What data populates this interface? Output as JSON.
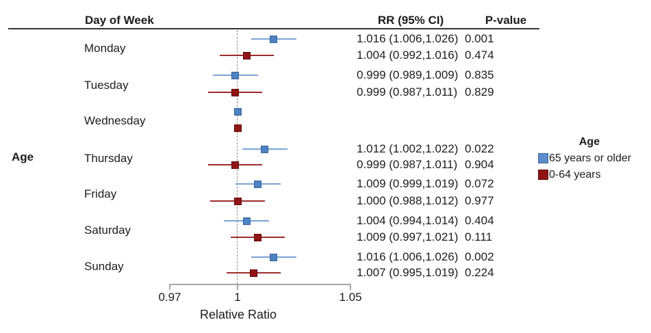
{
  "header": {
    "day_of_week": "Day of Week",
    "rr_ci": "RR (95% CI)",
    "p_value": "P-value"
  },
  "row_group_label": "Age",
  "axis": {
    "label": "Relative Ratio",
    "ticks": [
      {
        "value": 0.97,
        "label": "0.97"
      },
      {
        "value": 1,
        "label": "1"
      },
      {
        "value": 1.05,
        "label": "1.05"
      }
    ],
    "reference_value": 1
  },
  "legend": {
    "title": "Age",
    "items": [
      {
        "label": "65 years or older",
        "color": "#5d8dc8",
        "border": "#3a67a2"
      },
      {
        "label": "0-64 years",
        "color": "#911414",
        "border": "#5c0909"
      }
    ]
  },
  "colors": {
    "blue_line": "#7aa2d4",
    "blue_fill": "#4e82c2",
    "blue_border": "#36639e",
    "red_line": "#9d2b2b",
    "red_fill": "#911414",
    "red_border": "#5c0909",
    "text": "#1c1c1c",
    "rule": "#333333",
    "axis": "#a6a6a6",
    "reference": "#8a8a8a"
  },
  "chart_data": {
    "type": "scatter",
    "variant": "forest-plot",
    "title": "",
    "xlabel": "Relative Ratio",
    "ylabel": "Day of Week",
    "xlim": [
      0.955,
      1.06
    ],
    "x_ticks": [
      0.97,
      1,
      1.05
    ],
    "reference_line": 1,
    "grid": false,
    "legend_position": "right",
    "groups": [
      {
        "name": "65 years or older",
        "color": "#5d8dc8"
      },
      {
        "name": "0-64 years",
        "color": "#911414"
      }
    ],
    "rows": [
      {
        "day": "Monday",
        "group": "65 years or older",
        "rr": 1.016,
        "ci_low": 1.006,
        "ci_high": 1.026,
        "rr_text": "1.016 (1.006,1.026)",
        "p_text": "0.001"
      },
      {
        "day": "Monday",
        "group": "0-64 years",
        "rr": 1.004,
        "ci_low": 0.992,
        "ci_high": 1.016,
        "rr_text": "1.004 (0.992,1.016)",
        "p_text": "0.474"
      },
      {
        "day": "Tuesday",
        "group": "65 years or older",
        "rr": 0.999,
        "ci_low": 0.989,
        "ci_high": 1.009,
        "rr_text": "0.999 (0.989,1.009)",
        "p_text": "0.835"
      },
      {
        "day": "Tuesday",
        "group": "0-64 years",
        "rr": 0.999,
        "ci_low": 0.987,
        "ci_high": 1.011,
        "rr_text": "0.999 (0.987,1.011)",
        "p_text": "0.829"
      },
      {
        "day": "Wednesday",
        "group": "65 years or older",
        "rr": 1.0,
        "ci_low": null,
        "ci_high": null,
        "rr_text": "",
        "p_text": ""
      },
      {
        "day": "Wednesday",
        "group": "0-64 years",
        "rr": 1.0,
        "ci_low": null,
        "ci_high": null,
        "rr_text": "",
        "p_text": ""
      },
      {
        "day": "Thursday",
        "group": "65 years or older",
        "rr": 1.012,
        "ci_low": 1.002,
        "ci_high": 1.022,
        "rr_text": "1.012 (1.002,1.022)",
        "p_text": "0.022"
      },
      {
        "day": "Thursday",
        "group": "0-64 years",
        "rr": 0.999,
        "ci_low": 0.987,
        "ci_high": 1.011,
        "rr_text": "0.999 (0.987,1.011)",
        "p_text": "0.904"
      },
      {
        "day": "Friday",
        "group": "65 years or older",
        "rr": 1.009,
        "ci_low": 0.999,
        "ci_high": 1.019,
        "rr_text": "1.009 (0.999,1.019)",
        "p_text": "0.072"
      },
      {
        "day": "Friday",
        "group": "0-64 years",
        "rr": 1.0,
        "ci_low": 0.988,
        "ci_high": 1.012,
        "rr_text": "1.000 (0.988,1.012)",
        "p_text": "0.977"
      },
      {
        "day": "Saturday",
        "group": "65 years or older",
        "rr": 1.004,
        "ci_low": 0.994,
        "ci_high": 1.014,
        "rr_text": "1.004 (0.994,1.014)",
        "p_text": "0.404"
      },
      {
        "day": "Saturday",
        "group": "0-64 years",
        "rr": 1.009,
        "ci_low": 0.997,
        "ci_high": 1.021,
        "rr_text": "1.009 (0.997,1.021)",
        "p_text": "0.111"
      },
      {
        "day": "Sunday",
        "group": "65 years or older",
        "rr": 1.016,
        "ci_low": 1.006,
        "ci_high": 1.026,
        "rr_text": "1.016 (1.006,1.026)",
        "p_text": "0.002"
      },
      {
        "day": "Sunday",
        "group": "0-64 years",
        "rr": 1.007,
        "ci_low": 0.995,
        "ci_high": 1.019,
        "rr_text": "1.007 (0.995,1.019)",
        "p_text": "0.224"
      }
    ]
  }
}
